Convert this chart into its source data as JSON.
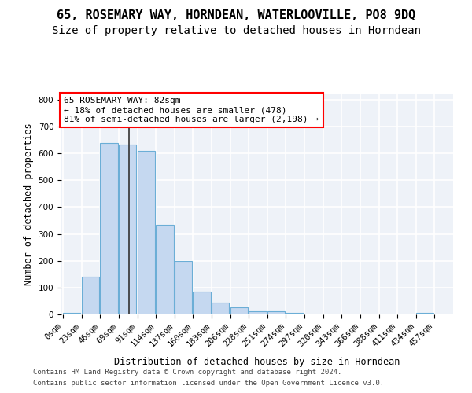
{
  "title": "65, ROSEMARY WAY, HORNDEAN, WATERLOOVILLE, PO8 9DQ",
  "subtitle": "Size of property relative to detached houses in Horndean",
  "xlabel": "Distribution of detached houses by size in Horndean",
  "ylabel": "Number of detached properties",
  "footer_line1": "Contains HM Land Registry data © Crown copyright and database right 2024.",
  "footer_line2": "Contains public sector information licensed under the Open Government Licence v3.0.",
  "bar_labels": [
    "0sqm",
    "23sqm",
    "46sqm",
    "69sqm",
    "91sqm",
    "114sqm",
    "137sqm",
    "160sqm",
    "183sqm",
    "206sqm",
    "228sqm",
    "251sqm",
    "274sqm",
    "297sqm",
    "320sqm",
    "343sqm",
    "366sqm",
    "388sqm",
    "411sqm",
    "434sqm",
    "457sqm"
  ],
  "bar_values": [
    5,
    140,
    638,
    632,
    608,
    335,
    200,
    85,
    45,
    25,
    12,
    13,
    5,
    0,
    0,
    0,
    0,
    0,
    0,
    5,
    0
  ],
  "bar_color": "#c5d8f0",
  "bar_edge_color": "#6baed6",
  "background_color": "#eef2f8",
  "grid_color": "#ffffff",
  "annotation_line1": "65 ROSEMARY WAY: 82sqm",
  "annotation_line2": "← 18% of detached houses are smaller (478)",
  "annotation_line3": "81% of semi-detached houses are larger (2,198) →",
  "vline_x": 82,
  "ylim": [
    0,
    820
  ],
  "title_fontsize": 11,
  "subtitle_fontsize": 10,
  "axis_label_fontsize": 8.5,
  "tick_fontsize": 7.5,
  "annotation_fontsize": 8,
  "footer_fontsize": 6.5
}
